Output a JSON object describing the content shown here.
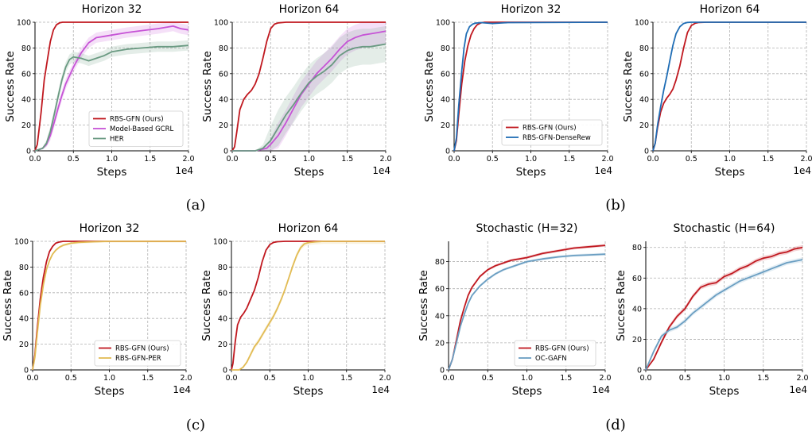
{
  "colors": {
    "rbs": "#c0181f",
    "gcrl": "#c653d6",
    "her": "#6a9a82",
    "dense": "#1f6db5",
    "per": "#e2bc55",
    "ocgafn": "#6a9ec2",
    "grid": "#b0b0b0"
  },
  "panel_labels": [
    "(a)",
    "(b)",
    "(c)",
    "(d)"
  ],
  "chart_data": [
    {
      "type": "line",
      "title": "Horizon 32",
      "xlabel": "Steps",
      "ylabel": "Success Rate",
      "x_multiplier": "1e4",
      "xlim": [
        0,
        2.0
      ],
      "ylim": [
        0,
        100
      ],
      "xticks": [
        "0.0",
        "0.5",
        "1.0",
        "1.5",
        "2.0"
      ],
      "yticks": [
        "0",
        "20",
        "40",
        "60",
        "80",
        "100"
      ],
      "legend": "lower-right",
      "grid": true,
      "series": [
        {
          "name": "RBS-GFN (Ours)",
          "color_key": "rbs",
          "band": 0,
          "x": [
            0,
            0.03,
            0.08,
            0.12,
            0.16,
            0.2,
            0.24,
            0.28,
            0.32,
            0.36,
            0.4,
            2.0
          ],
          "y": [
            0,
            5,
            30,
            55,
            70,
            85,
            94,
            98,
            99.5,
            100,
            100,
            100
          ]
        },
        {
          "name": "Model-Based GCRL",
          "color_key": "gcrl",
          "band": 4,
          "x": [
            0,
            0.1,
            0.15,
            0.2,
            0.25,
            0.3,
            0.35,
            0.4,
            0.5,
            0.6,
            0.7,
            0.8,
            0.9,
            1.0,
            1.2,
            1.4,
            1.6,
            1.8,
            1.9,
            2.0
          ],
          "y": [
            0,
            2,
            5,
            12,
            22,
            33,
            43,
            52,
            65,
            76,
            84,
            88,
            89,
            90,
            92,
            93.5,
            95,
            97,
            95,
            94
          ]
        },
        {
          "name": "HER",
          "color_key": "her",
          "band": 4,
          "x": [
            0,
            0.1,
            0.15,
            0.2,
            0.25,
            0.3,
            0.35,
            0.4,
            0.45,
            0.5,
            0.6,
            0.7,
            0.8,
            0.9,
            1.0,
            1.2,
            1.4,
            1.6,
            1.8,
            2.0
          ],
          "y": [
            0,
            2,
            6,
            15,
            28,
            42,
            55,
            65,
            71,
            73,
            72,
            70,
            72,
            74,
            77,
            79,
            80,
            81,
            81,
            82
          ]
        }
      ]
    },
    {
      "type": "line",
      "title": "Horizon 64",
      "xlabel": "Steps",
      "ylabel": "Success Rate",
      "x_multiplier": "1e4",
      "xlim": [
        0,
        2.0
      ],
      "ylim": [
        0,
        100
      ],
      "xticks": [
        "0.0",
        "0.5",
        "1.0",
        "1.5",
        "2.0"
      ],
      "yticks": [
        "0",
        "20",
        "40",
        "60",
        "80",
        "100"
      ],
      "legend": "none",
      "grid": true,
      "series": [
        {
          "name": "RBS-GFN (Ours)",
          "color_key": "rbs",
          "band": 0,
          "x": [
            0,
            0.03,
            0.06,
            0.1,
            0.15,
            0.2,
            0.25,
            0.3,
            0.35,
            0.4,
            0.45,
            0.5,
            0.55,
            0.6,
            0.7,
            2.0
          ],
          "y": [
            0,
            3,
            15,
            32,
            40,
            44,
            47,
            52,
            60,
            72,
            85,
            95,
            98.5,
            99.5,
            100,
            100
          ]
        },
        {
          "name": "Model-Based GCRL",
          "color_key": "gcrl",
          "band": 10,
          "x": [
            0,
            0.3,
            0.45,
            0.5,
            0.6,
            0.7,
            0.8,
            0.9,
            1.0,
            1.1,
            1.2,
            1.3,
            1.4,
            1.5,
            1.6,
            1.7,
            1.8,
            1.9,
            2.0
          ],
          "y": [
            0,
            0,
            2,
            5,
            12,
            22,
            33,
            44,
            52,
            60,
            66,
            72,
            79,
            85,
            88,
            90,
            91,
            92,
            93
          ]
        },
        {
          "name": "HER",
          "color_key": "her",
          "band": 14,
          "x": [
            0,
            0.3,
            0.4,
            0.5,
            0.6,
            0.7,
            0.8,
            0.9,
            1.0,
            1.1,
            1.2,
            1.3,
            1.4,
            1.5,
            1.6,
            1.7,
            1.8,
            1.9,
            2.0
          ],
          "y": [
            0,
            0,
            2,
            8,
            18,
            28,
            36,
            45,
            53,
            58,
            62,
            67,
            74,
            78,
            80,
            81,
            81,
            82,
            83
          ]
        }
      ]
    },
    {
      "type": "line",
      "title": "Horizon 32",
      "xlabel": "Steps",
      "ylabel": "Success Rate",
      "x_multiplier": "1e4",
      "xlim": [
        0,
        2.0
      ],
      "ylim": [
        0,
        100
      ],
      "xticks": [
        "0.0",
        "0.5",
        "1.0",
        "1.5",
        "2.0"
      ],
      "yticks": [
        "0",
        "20",
        "40",
        "60",
        "80",
        "100"
      ],
      "legend": "lower-right",
      "grid": true,
      "series": [
        {
          "name": "RBS-GFN (Ours)",
          "color_key": "rbs",
          "band": 0,
          "x": [
            0,
            0.03,
            0.06,
            0.1,
            0.14,
            0.18,
            0.22,
            0.26,
            0.3,
            0.35,
            0.4,
            2.0
          ],
          "y": [
            0,
            8,
            28,
            52,
            70,
            82,
            90,
            95,
            98,
            99.5,
            100,
            100
          ]
        },
        {
          "name": "RBS-GFN-DenseRew",
          "color_key": "dense",
          "band": 0,
          "x": [
            0,
            0.03,
            0.06,
            0.1,
            0.13,
            0.16,
            0.2,
            0.24,
            0.28,
            0.35,
            0.5,
            0.7,
            2.0
          ],
          "y": [
            0,
            10,
            35,
            62,
            80,
            91,
            96.5,
            98.5,
            99.3,
            99.7,
            99,
            99.7,
            100
          ]
        }
      ]
    },
    {
      "type": "line",
      "title": "Horizon 64",
      "xlabel": "Steps",
      "ylabel": "Success Rate",
      "x_multiplier": "1e4",
      "xlim": [
        0,
        2.0
      ],
      "ylim": [
        0,
        100
      ],
      "xticks": [
        "0.0",
        "0.5",
        "1.0",
        "1.5",
        "2.0"
      ],
      "yticks": [
        "0",
        "20",
        "40",
        "60",
        "80",
        "100"
      ],
      "legend": "none",
      "grid": true,
      "series": [
        {
          "name": "RBS-GFN (Ours)",
          "color_key": "rbs",
          "band": 0,
          "x": [
            0,
            0.03,
            0.06,
            0.1,
            0.14,
            0.18,
            0.22,
            0.26,
            0.3,
            0.35,
            0.4,
            0.45,
            0.5,
            0.55,
            0.6,
            0.7,
            2.0
          ],
          "y": [
            0,
            6,
            18,
            30,
            37,
            41,
            44,
            48,
            55,
            66,
            80,
            92,
            97.5,
            99.2,
            99.8,
            100,
            100
          ]
        },
        {
          "name": "RBS-GFN-DenseRew",
          "color_key": "dense",
          "band": 0,
          "x": [
            0,
            0.03,
            0.06,
            0.1,
            0.14,
            0.18,
            0.22,
            0.26,
            0.3,
            0.35,
            0.4,
            0.45,
            0.5,
            2.0
          ],
          "y": [
            0,
            6,
            20,
            34,
            47,
            58,
            70,
            82,
            91,
            96.5,
            99,
            99.8,
            100,
            100
          ]
        }
      ]
    },
    {
      "type": "line",
      "title": "Horizon 32",
      "xlabel": "Steps",
      "ylabel": "Success Rate",
      "x_multiplier": "1e4",
      "xlim": [
        0,
        2.0
      ],
      "ylim": [
        0,
        100
      ],
      "xticks": [
        "0.0",
        "0.5",
        "1.0",
        "1.5",
        "2.0"
      ],
      "yticks": [
        "0",
        "20",
        "40",
        "60",
        "80",
        "100"
      ],
      "legend": "lower-right",
      "grid": true,
      "series": [
        {
          "name": "RBS-GFN (Ours)",
          "color_key": "rbs",
          "band": 0,
          "x": [
            0,
            0.03,
            0.06,
            0.1,
            0.14,
            0.18,
            0.22,
            0.26,
            0.3,
            0.35,
            0.4,
            0.45,
            2.0
          ],
          "y": [
            0,
            12,
            32,
            55,
            72,
            84,
            92,
            96,
            98.5,
            99.5,
            100,
            100,
            100
          ]
        },
        {
          "name": "RBS-GFN-PER",
          "color_key": "per",
          "band": 1,
          "x": [
            0,
            0.03,
            0.06,
            0.1,
            0.14,
            0.18,
            0.22,
            0.26,
            0.3,
            0.35,
            0.4,
            0.5,
            0.6,
            0.8,
            1.0,
            2.0
          ],
          "y": [
            0,
            10,
            28,
            50,
            66,
            78,
            85,
            90,
            93,
            95.5,
            97,
            98.5,
            99.2,
            99.7,
            100,
            100
          ]
        }
      ]
    },
    {
      "type": "line",
      "title": "Horizon 64",
      "xlabel": "Steps",
      "ylabel": "Success Rate",
      "x_multiplier": "1e4",
      "xlim": [
        0,
        2.0
      ],
      "ylim": [
        0,
        100
      ],
      "xticks": [
        "0.0",
        "0.5",
        "1.0",
        "1.5",
        "2.0"
      ],
      "yticks": [
        "0",
        "20",
        "40",
        "60",
        "80",
        "100"
      ],
      "legend": "none",
      "grid": true,
      "series": [
        {
          "name": "RBS-GFN (Ours)",
          "color_key": "rbs",
          "band": 0,
          "x": [
            0,
            0.02,
            0.05,
            0.08,
            0.12,
            0.16,
            0.2,
            0.25,
            0.3,
            0.35,
            0.4,
            0.45,
            0.5,
            0.55,
            0.6,
            0.7,
            2.0
          ],
          "y": [
            0,
            5,
            22,
            35,
            41,
            44,
            48,
            55,
            62,
            72,
            84,
            93,
            97.5,
            99.2,
            99.7,
            100,
            100
          ]
        },
        {
          "name": "RBS-GFN-PER",
          "color_key": "per",
          "band": 2,
          "x": [
            0,
            0.1,
            0.15,
            0.2,
            0.25,
            0.3,
            0.35,
            0.4,
            0.45,
            0.5,
            0.55,
            0.6,
            0.65,
            0.7,
            0.75,
            0.8,
            0.85,
            0.9,
            0.95,
            1.0,
            1.1,
            1.2,
            2.0
          ],
          "y": [
            0,
            0,
            2,
            6,
            12,
            18,
            22,
            27,
            32,
            37,
            42,
            48,
            55,
            63,
            72,
            81,
            89,
            95,
            98,
            99,
            99.6,
            100,
            100
          ]
        }
      ]
    },
    {
      "type": "line",
      "title": "Stochastic (H=32)",
      "xlabel": "Steps",
      "ylabel": "Success Rate",
      "x_multiplier": "1e4",
      "xlim": [
        0,
        2.0
      ],
      "ylim": [
        0,
        95
      ],
      "xticks": [
        "0.0",
        "0.5",
        "1.0",
        "1.5",
        "2.0"
      ],
      "yticks": [
        "0",
        "20",
        "40",
        "60",
        "80"
      ],
      "legend": "lower-right",
      "grid": true,
      "series": [
        {
          "name": "RBS-GFN (Ours)",
          "color_key": "rbs",
          "band": 1,
          "x": [
            0,
            0.05,
            0.1,
            0.15,
            0.2,
            0.25,
            0.3,
            0.4,
            0.5,
            0.6,
            0.7,
            0.8,
            0.9,
            1.0,
            1.2,
            1.4,
            1.6,
            1.8,
            2.0
          ],
          "y": [
            0,
            8,
            22,
            36,
            46,
            55,
            61,
            69,
            74,
            77,
            79,
            81,
            82,
            83,
            86,
            88,
            90,
            91,
            92
          ]
        },
        {
          "name": "OC-GAFN",
          "color_key": "ocgafn",
          "band": 1,
          "x": [
            0,
            0.05,
            0.1,
            0.15,
            0.2,
            0.25,
            0.3,
            0.4,
            0.5,
            0.6,
            0.7,
            0.8,
            0.9,
            1.0,
            1.2,
            1.4,
            1.6,
            1.8,
            2.0
          ],
          "y": [
            0,
            8,
            20,
            32,
            41,
            49,
            55,
            62,
            67,
            71,
            74,
            76,
            78,
            80,
            82,
            83.5,
            84.5,
            85,
            85.5
          ]
        }
      ]
    },
    {
      "type": "line",
      "title": "Stochastic (H=64)",
      "xlabel": "Steps",
      "ylabel": "Success Rate",
      "x_multiplier": "1e4",
      "xlim": [
        0,
        2.0
      ],
      "ylim": [
        0,
        84
      ],
      "xticks": [
        "0.0",
        "0.5",
        "1.0",
        "1.5",
        "2.0"
      ],
      "yticks": [
        "0",
        "20",
        "40",
        "60",
        "80"
      ],
      "legend": "none",
      "grid": true,
      "series": [
        {
          "name": "RBS-GFN (Ours)",
          "color_key": "rbs",
          "band": 1.5,
          "x": [
            0,
            0.1,
            0.2,
            0.3,
            0.4,
            0.5,
            0.6,
            0.7,
            0.8,
            0.9,
            1.0,
            1.1,
            1.2,
            1.3,
            1.4,
            1.5,
            1.6,
            1.7,
            1.8,
            1.9,
            2.0
          ],
          "y": [
            0,
            7,
            18,
            28,
            35,
            40,
            48,
            54,
            56,
            57,
            61,
            63,
            66,
            68,
            71,
            73,
            74,
            76,
            77,
            79,
            80
          ]
        },
        {
          "name": "OC-GAFN",
          "color_key": "ocgafn",
          "band": 1.5,
          "x": [
            0,
            0.1,
            0.2,
            0.3,
            0.4,
            0.5,
            0.6,
            0.7,
            0.8,
            0.9,
            1.0,
            1.1,
            1.2,
            1.3,
            1.4,
            1.5,
            1.6,
            1.7,
            1.8,
            1.9,
            2.0
          ],
          "y": [
            0,
            12,
            22,
            26,
            28,
            32,
            37,
            41,
            45,
            49,
            52,
            55,
            58,
            60,
            62,
            64,
            66,
            68,
            70,
            71,
            72
          ]
        }
      ]
    }
  ]
}
